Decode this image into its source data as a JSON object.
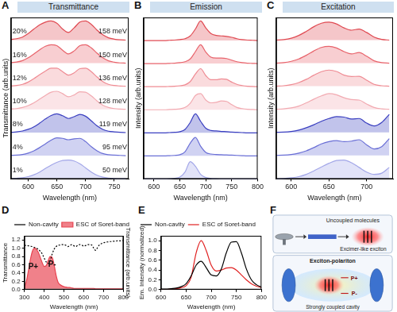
{
  "chart_data": [
    {
      "panel": "A",
      "title": "Transmittance",
      "type": "line",
      "xlabel": "Wavelength (nm)",
      "ylabel": "Transmittance (arb.units)",
      "x": [
        570,
        580,
        590,
        600,
        610,
        620,
        630,
        640,
        650,
        660,
        670,
        680,
        690,
        700,
        710,
        720,
        730,
        740,
        750,
        760,
        770
      ],
      "xlim": [
        570,
        775
      ],
      "xticks": [
        600,
        650,
        700,
        750
      ],
      "ylim": [
        0,
        7
      ],
      "tick_labels": "x",
      "grid": false,
      "series": [
        {
          "name": "20%",
          "annotation": "158 meV",
          "color": "#e04a52",
          "type": "area",
          "values": [
            6.05,
            6.08,
            6.15,
            6.3,
            6.5,
            6.68,
            6.8,
            6.85,
            6.75,
            6.5,
            6.35,
            6.55,
            6.8,
            6.85,
            6.7,
            6.45,
            6.25,
            6.12,
            6.06,
            6.03,
            6.02
          ]
        },
        {
          "name": "16%",
          "annotation": "150 meV",
          "color": "#e8636b",
          "type": "area",
          "values": [
            5.04,
            5.07,
            5.13,
            5.25,
            5.42,
            5.6,
            5.75,
            5.82,
            5.78,
            5.58,
            5.42,
            5.55,
            5.78,
            5.82,
            5.68,
            5.45,
            5.25,
            5.12,
            5.06,
            5.03,
            5.02
          ]
        },
        {
          "name": "12%",
          "annotation": "136 meV",
          "color": "#ef8b93",
          "type": "area",
          "values": [
            4.03,
            4.05,
            4.1,
            4.2,
            4.35,
            4.52,
            4.68,
            4.8,
            4.8,
            4.65,
            4.5,
            4.6,
            4.78,
            4.8,
            4.65,
            4.42,
            4.22,
            4.1,
            4.05,
            4.03,
            4.02
          ]
        },
        {
          "name": "10%",
          "annotation": "128 meV",
          "color": "#f2aab1",
          "type": "area",
          "values": [
            3.03,
            3.05,
            3.1,
            3.18,
            3.3,
            3.46,
            3.62,
            3.76,
            3.8,
            3.7,
            3.56,
            3.64,
            3.78,
            3.76,
            3.6,
            3.38,
            3.2,
            3.1,
            3.05,
            3.03,
            3.02
          ]
        },
        {
          "name": "8%",
          "annotation": "119 meV",
          "color": "#3a3fc0",
          "type": "area",
          "values": [
            2.02,
            2.04,
            2.08,
            2.15,
            2.26,
            2.42,
            2.6,
            2.75,
            2.82,
            2.74,
            2.62,
            2.7,
            2.8,
            2.72,
            2.52,
            2.3,
            2.15,
            2.07,
            2.04,
            2.02,
            2.01
          ]
        },
        {
          "name": "4%",
          "annotation": "95 meV",
          "color": "#6a6fd6",
          "type": "area",
          "values": [
            1.02,
            1.03,
            1.06,
            1.12,
            1.22,
            1.36,
            1.52,
            1.68,
            1.78,
            1.76,
            1.7,
            1.74,
            1.76,
            1.62,
            1.4,
            1.22,
            1.1,
            1.05,
            1.03,
            1.02,
            1.01
          ]
        },
        {
          "name": "1%",
          "annotation": "50 meV",
          "color": "#a3a7e8",
          "type": "area",
          "values": [
            0.02,
            0.03,
            0.05,
            0.1,
            0.18,
            0.3,
            0.45,
            0.6,
            0.72,
            0.8,
            0.82,
            0.78,
            0.66,
            0.48,
            0.3,
            0.16,
            0.08,
            0.04,
            0.02,
            0.01,
            0.01
          ]
        }
      ]
    },
    {
      "panel": "B",
      "title": "Emission",
      "type": "line",
      "xlabel": "Wavelength (nm)",
      "ylabel": "Intensity (arb.units)",
      "x": [
        580,
        590,
        600,
        610,
        620,
        630,
        640,
        650,
        660,
        670,
        680,
        690,
        700,
        710,
        720,
        730,
        740,
        750,
        760,
        770,
        780,
        790,
        800
      ],
      "xlim": [
        580,
        800
      ],
      "xticks": [
        600,
        650,
        700,
        750,
        800
      ],
      "ylim": [
        0,
        7
      ],
      "tick_labels": "x",
      "grid": false,
      "series": [
        {
          "color": "#e04a52",
          "type": "area",
          "values": [
            6,
            6,
            6,
            6,
            6,
            6.01,
            6.02,
            6.04,
            6.08,
            6.2,
            6.5,
            6.85,
            6.55,
            6.3,
            6.22,
            6.2,
            6.18,
            6.14,
            6.08,
            6.04,
            6.02,
            6.01,
            6
          ]
        },
        {
          "color": "#e8636b",
          "type": "area",
          "values": [
            5,
            5,
            5,
            5,
            5,
            5.01,
            5.02,
            5.04,
            5.08,
            5.2,
            5.52,
            5.82,
            5.5,
            5.28,
            5.24,
            5.24,
            5.22,
            5.15,
            5.08,
            5.04,
            5.02,
            5.01,
            5
          ]
        },
        {
          "color": "#ef8b93",
          "type": "area",
          "values": [
            4,
            4,
            4,
            4,
            4,
            4.01,
            4.02,
            4.04,
            4.08,
            4.22,
            4.55,
            4.78,
            4.48,
            4.3,
            4.3,
            4.34,
            4.32,
            4.2,
            4.1,
            4.05,
            4.02,
            4.01,
            4
          ]
        },
        {
          "color": "#f2aab1",
          "type": "area",
          "values": [
            3,
            3,
            3,
            3,
            3,
            3.01,
            3.02,
            3.04,
            3.1,
            3.28,
            3.62,
            3.7,
            3.42,
            3.3,
            3.32,
            3.38,
            3.36,
            3.22,
            3.1,
            3.05,
            3.02,
            3.01,
            3
          ]
        },
        {
          "color": "#3a3fc0",
          "type": "area",
          "values": [
            2,
            2,
            2,
            2,
            2,
            2.01,
            2.02,
            2.05,
            2.15,
            2.45,
            2.82,
            2.5,
            2.2,
            2.1,
            2.08,
            2.06,
            2.05,
            2.03,
            2.02,
            2.01,
            2,
            2,
            2
          ]
        },
        {
          "color": "#6a6fd6",
          "type": "area",
          "values": [
            1,
            1,
            1,
            1,
            1,
            1.01,
            1.02,
            1.05,
            1.18,
            1.55,
            1.8,
            1.42,
            1.15,
            1.08,
            1.06,
            1.05,
            1.04,
            1.03,
            1.02,
            1.01,
            1,
            1,
            1
          ]
        },
        {
          "color": "#a3a7e8",
          "type": "area",
          "values": [
            0,
            0,
            0,
            0,
            0,
            0.01,
            0.03,
            0.08,
            0.3,
            0.75,
            0.55,
            0.2,
            0.06,
            0.02,
            0.01,
            0,
            0,
            0,
            0,
            0,
            0,
            0,
            0
          ]
        }
      ]
    },
    {
      "panel": "C",
      "title": "Excitation",
      "type": "line",
      "xlabel": "Wavelength (nm)",
      "ylabel": "Intensity (arb.units)",
      "x": [
        580,
        590,
        600,
        610,
        620,
        630,
        640,
        650,
        660,
        670,
        680,
        690,
        700,
        710,
        720,
        730
      ],
      "xlim": [
        580,
        735
      ],
      "xticks": [
        600,
        650,
        700
      ],
      "ylim": [
        0,
        7
      ],
      "tick_labels": "x",
      "grid": false,
      "series": [
        {
          "color": "#e04a52",
          "type": "area",
          "values": [
            6.02,
            6.04,
            6.1,
            6.22,
            6.4,
            6.6,
            6.75,
            6.8,
            6.72,
            6.55,
            6.45,
            6.5,
            6.35,
            6.15,
            6.05,
            6.02
          ]
        },
        {
          "color": "#e8636b",
          "type": "area",
          "values": [
            5.02,
            5.04,
            5.1,
            5.2,
            5.36,
            5.55,
            5.7,
            5.75,
            5.68,
            5.52,
            5.42,
            5.48,
            5.32,
            5.12,
            5.04,
            5.02
          ]
        },
        {
          "color": "#ef8b93",
          "type": "area",
          "values": [
            4.02,
            4.04,
            4.09,
            4.18,
            4.32,
            4.5,
            4.65,
            4.72,
            4.66,
            4.5,
            4.44,
            4.45,
            4.28,
            4.1,
            4.04,
            4.02
          ]
        },
        {
          "color": "#f2aab1",
          "type": "area",
          "values": [
            3.02,
            3.04,
            3.08,
            3.16,
            3.3,
            3.46,
            3.6,
            3.7,
            3.65,
            3.52,
            3.44,
            3.42,
            3.25,
            3.1,
            3.04,
            3.02
          ]
        },
        {
          "color": "#3a3fc0",
          "type": "area",
          "values": [
            2.02,
            2.03,
            2.06,
            2.12,
            2.22,
            2.35,
            2.5,
            2.62,
            2.7,
            2.68,
            2.6,
            2.62,
            2.42,
            2.3,
            2.45,
            2.8
          ]
        },
        {
          "color": "#6a6fd6",
          "type": "area",
          "values": [
            1.02,
            1.03,
            1.06,
            1.12,
            1.22,
            1.36,
            1.52,
            1.62,
            1.66,
            1.62,
            1.64,
            1.7,
            1.48,
            1.3,
            1.4,
            1.75
          ]
        },
        {
          "color": "#a3a7e8",
          "type": "area",
          "values": [
            0.01,
            0.02,
            0.05,
            0.1,
            0.2,
            0.35,
            0.52,
            0.68,
            0.8,
            0.82,
            0.7,
            0.5,
            0.3,
            0.2,
            0.25,
            0.5
          ]
        }
      ]
    },
    {
      "panel": "D",
      "type": "line",
      "xlabel": "Wavelength (nm)",
      "ylabel": "Transmittance",
      "y2label": "Transmittance (arb.units)",
      "x": [
        300,
        310,
        320,
        330,
        340,
        350,
        360,
        370,
        380,
        390,
        400,
        410,
        420,
        430,
        440,
        450,
        460,
        470,
        480,
        490,
        500,
        510,
        520,
        530,
        540,
        550,
        560,
        570,
        580,
        590,
        600,
        610,
        620,
        630,
        640,
        650,
        660,
        670,
        680,
        690,
        700,
        710,
        720,
        730,
        740,
        750,
        760,
        770,
        780,
        790,
        800
      ],
      "xlim": [
        300,
        800
      ],
      "xticks": [
        300,
        400,
        500,
        600,
        700,
        800
      ],
      "ylim": [
        0,
        1.3
      ],
      "yticks": [
        {
          "value": 0,
          "label": "0.0"
        },
        0.2,
        0.4,
        0.6,
        0.8,
        {
          "value": 1,
          "label": "1.0"
        },
        1.2
      ],
      "y2lim": [
        0,
        1.4
      ],
      "legend": "upper right",
      "grid": false,
      "annotations": [
        {
          "text": "P+",
          "x": 345,
          "y": 0.55
        },
        {
          "text": "P-",
          "x": 440,
          "y": 0.6
        }
      ],
      "series": [
        {
          "name": "Non-cavity",
          "color": "#000000",
          "line_style": "dotted",
          "axis": "y2",
          "values": [
            1.15,
            1.15,
            1.14,
            1.13,
            1.12,
            1.1,
            1.08,
            1.05,
            1.0,
            0.93,
            0.82,
            0.72,
            0.68,
            0.75,
            0.92,
            1.05,
            1.12,
            1.15,
            1.16,
            1.17,
            1.17,
            1.15,
            1.12,
            1.15,
            1.17,
            1.14,
            1.12,
            1.16,
            1.17,
            1.16,
            1.13,
            1.15,
            1.17,
            1.17,
            1.16,
            1.08,
            1.02,
            1.1,
            1.17,
            1.2,
            1.22,
            1.23,
            1.24,
            1.25,
            1.25,
            1.26,
            1.26,
            1.27,
            1.27,
            1.27,
            1.28
          ]
        },
        {
          "name": "ESC of Soret-band",
          "color": "#e8424f",
          "type": "area",
          "values": [
            0.05,
            0.2,
            0.45,
            0.72,
            0.92,
            1.0,
            0.98,
            0.9,
            0.78,
            0.65,
            0.56,
            0.58,
            0.7,
            0.8,
            0.78,
            0.6,
            0.35,
            0.18,
            0.12,
            0.09,
            0.07,
            0.06,
            0.05,
            0.05,
            0.04,
            0.03,
            0.03,
            0.03,
            0.03,
            0.03,
            0.03,
            0.03,
            0.03,
            0.03,
            0.03,
            0.03,
            0.02,
            0.02,
            0.02,
            0.02,
            0.02,
            0.02,
            0.02,
            0.02,
            0.02,
            0.02,
            0.02,
            0.02,
            0.02,
            0.02,
            0.02
          ]
        }
      ]
    },
    {
      "panel": "E",
      "type": "line",
      "xlabel": "Wavelength (nm)",
      "ylabel": "Em. Intensity (normalized)",
      "x": [
        600,
        610,
        620,
        630,
        640,
        650,
        660,
        670,
        680,
        690,
        700,
        710,
        720,
        730,
        740,
        750,
        760,
        770,
        780,
        790,
        800
      ],
      "xlim": [
        600,
        800
      ],
      "xticks": [
        600,
        650,
        700,
        750,
        800
      ],
      "ylim": [
        0,
        1.1
      ],
      "yticks": [
        {
          "value": 0,
          "label": "0.0"
        },
        0.2,
        0.4,
        0.6,
        0.8,
        {
          "value": 1,
          "label": "1.0"
        }
      ],
      "legend": "upper left",
      "grid": false,
      "series": [
        {
          "name": "Non-cavity",
          "color": "#000000",
          "values": [
            0.01,
            0.01,
            0.02,
            0.03,
            0.06,
            0.12,
            0.28,
            0.5,
            0.58,
            0.45,
            0.3,
            0.28,
            0.42,
            0.75,
            0.97,
            0.98,
            0.75,
            0.42,
            0.2,
            0.1,
            0.05
          ]
        },
        {
          "name": "ESC of Soret-band",
          "color": "#e02020",
          "values": [
            0,
            0,
            0.01,
            0.02,
            0.04,
            0.08,
            0.25,
            0.75,
            1.0,
            0.8,
            0.5,
            0.38,
            0.4,
            0.44,
            0.45,
            0.4,
            0.3,
            0.2,
            0.12,
            0.07,
            0.04
          ]
        }
      ]
    }
  ],
  "diagram": {
    "panel": "F",
    "uncoupled": {
      "title": "Uncoupled molecules",
      "exciton": "Excimer-like exciton"
    },
    "coupled": {
      "title": "Exciton-polariton",
      "upper": "P+",
      "lower": "P-",
      "cavity": "Strongly coupled cavity"
    }
  }
}
